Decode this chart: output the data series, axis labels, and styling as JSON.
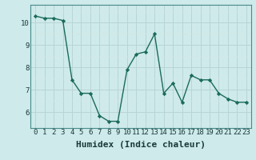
{
  "x": [
    0,
    1,
    2,
    3,
    4,
    5,
    6,
    7,
    8,
    9,
    10,
    11,
    12,
    13,
    14,
    15,
    16,
    17,
    18,
    19,
    20,
    21,
    22,
    23
  ],
  "y": [
    10.3,
    10.2,
    10.2,
    10.1,
    7.45,
    6.85,
    6.85,
    5.85,
    5.6,
    5.6,
    7.9,
    8.6,
    8.7,
    9.5,
    6.85,
    7.3,
    6.45,
    7.65,
    7.45,
    7.45,
    6.85,
    6.6,
    6.45,
    6.45
  ],
  "line_color": "#1a6b5a",
  "marker": "D",
  "marker_size": 2.2,
  "bg_color": "#ceeaea",
  "grid_major_color": "#b8d4d4",
  "grid_minor_color": "#d4e8e8",
  "xlabel": "Humidex (Indice chaleur)",
  "xlabel_fontsize": 8,
  "ylim": [
    5.3,
    10.8
  ],
  "xlim": [
    -0.5,
    23.5
  ],
  "yticks": [
    6,
    7,
    8,
    9,
    10
  ],
  "xticks": [
    0,
    1,
    2,
    3,
    4,
    5,
    6,
    7,
    8,
    9,
    10,
    11,
    12,
    13,
    14,
    15,
    16,
    17,
    18,
    19,
    20,
    21,
    22,
    23
  ],
  "tick_fontsize": 6.5,
  "line_width": 1.0
}
